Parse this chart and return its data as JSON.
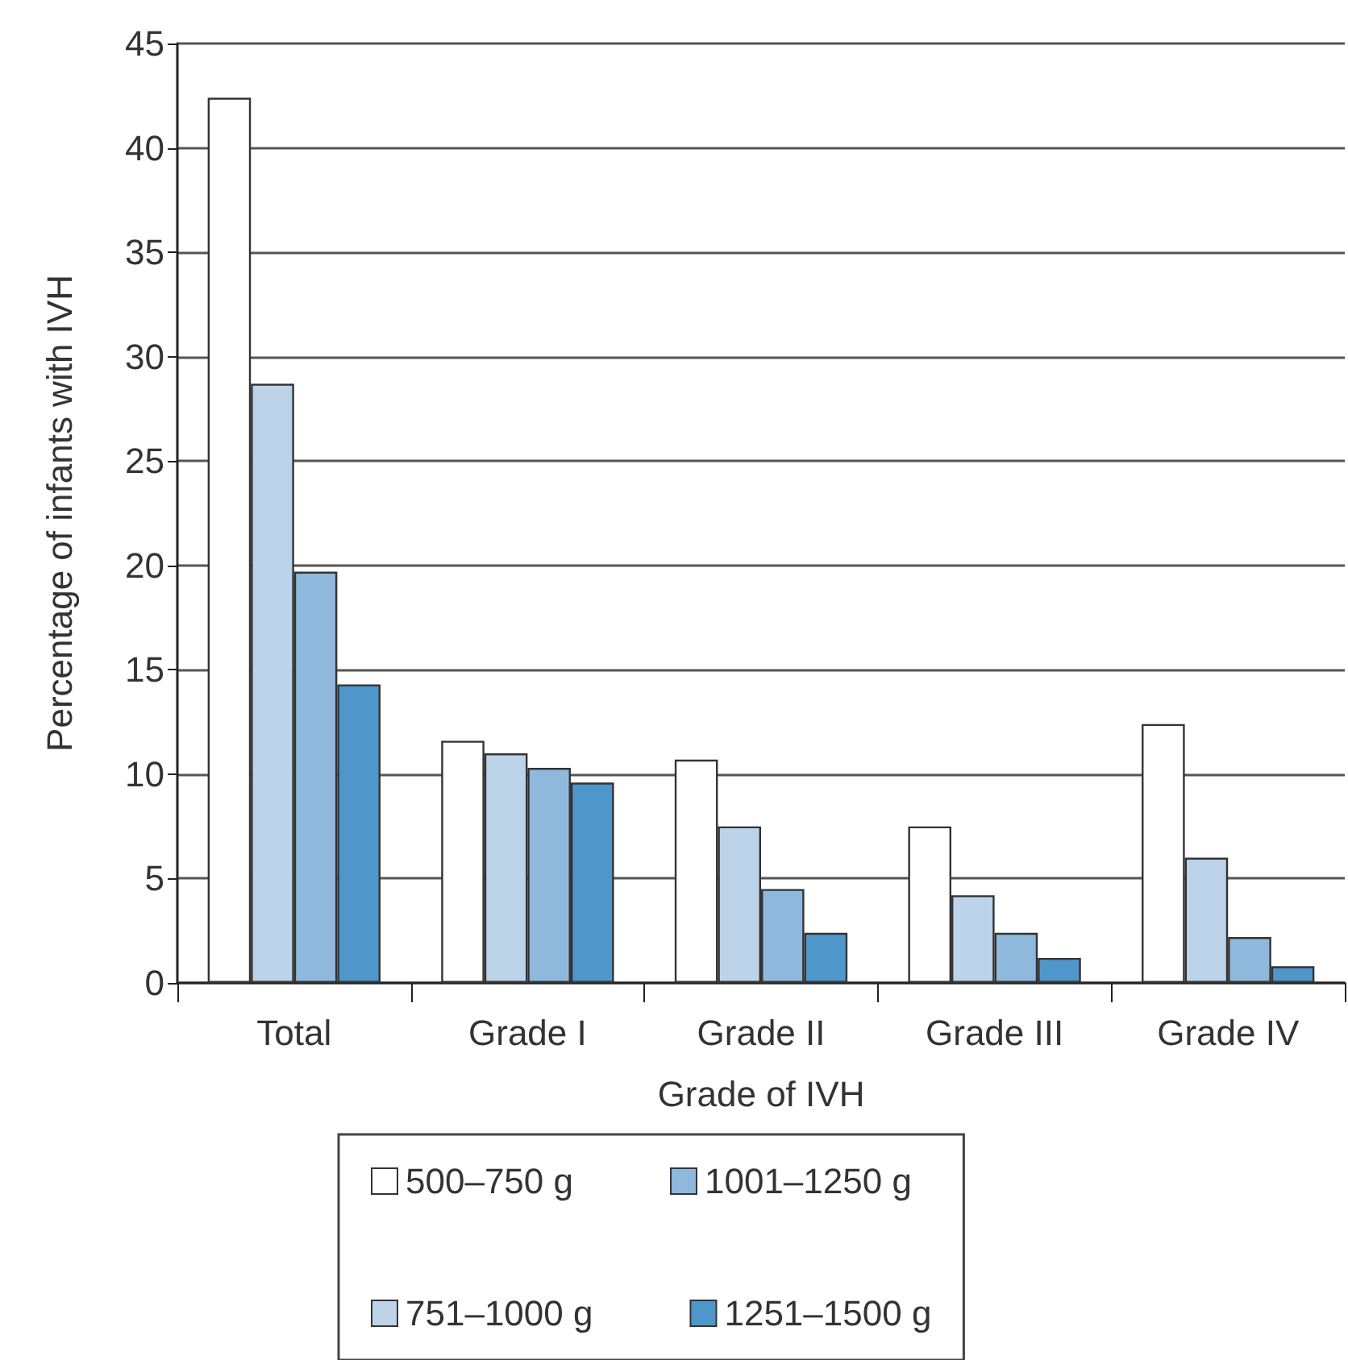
{
  "chart_data": {
    "type": "bar",
    "xlabel": "Grade of IVH",
    "ylabel": "Percentage of infants with IVH",
    "categories": [
      "Total",
      "Grade I",
      "Grade II",
      "Grade III",
      "Grade IV"
    ],
    "series": [
      {
        "name": "500–750 g",
        "color": "#ffffff",
        "values": [
          42.4,
          11.6,
          10.7,
          7.5,
          12.4
        ]
      },
      {
        "name": "751–1000 g",
        "color": "#bcd3ea",
        "values": [
          28.7,
          11.0,
          7.5,
          4.2,
          6.0
        ]
      },
      {
        "name": "1001–1250 g",
        "color": "#8fb8dd",
        "values": [
          19.7,
          10.3,
          4.5,
          2.4,
          2.2
        ]
      },
      {
        "name": "1251–1500 g",
        "color": "#4f96cb",
        "values": [
          14.3,
          9.6,
          2.4,
          1.2,
          0.8
        ]
      }
    ],
    "ylim": [
      0,
      45
    ],
    "yticks": [
      0,
      5,
      10,
      15,
      20,
      25,
      30,
      35,
      40,
      45
    ],
    "grid": "y",
    "legend": "bottom"
  }
}
